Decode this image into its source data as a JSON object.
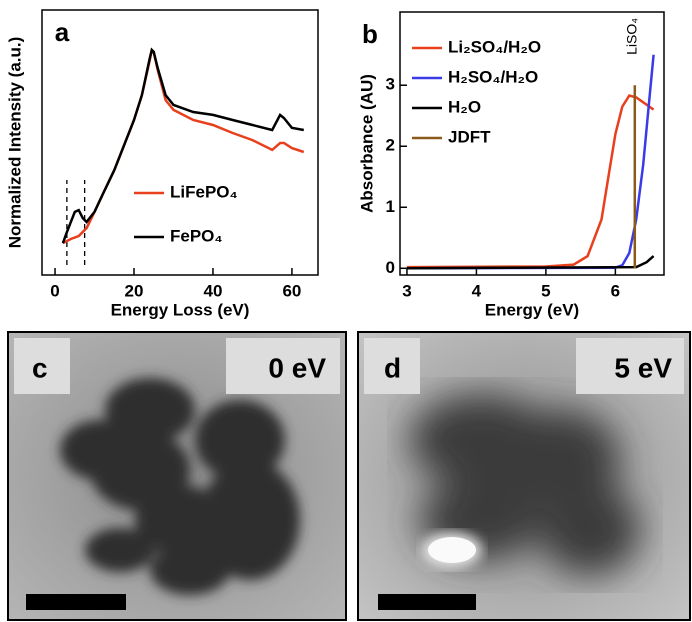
{
  "chart_data": [
    {
      "type": "line",
      "panel_label": "a",
      "x_label": "Energy Loss (eV)",
      "y_label": "Normalized Intensity (a.u.)",
      "xlim": [
        -3.3,
        66.6
      ],
      "ylim": [
        0,
        1
      ],
      "xticks": [
        0,
        20,
        40,
        60
      ],
      "vlines": [
        3,
        7.5
      ],
      "legend": "lower right",
      "series": [
        {
          "name": "LiFePO₄",
          "color": "#e8401c",
          "x": [
            2,
            4,
            6,
            8,
            10,
            12,
            15,
            18,
            20,
            22,
            24,
            24.5,
            25,
            26,
            28,
            30,
            35,
            40,
            45,
            50,
            55,
            57,
            58,
            60,
            63
          ],
          "values": [
            0.12,
            0.136,
            0.147,
            0.177,
            0.238,
            0.302,
            0.396,
            0.509,
            0.585,
            0.679,
            0.811,
            0.849,
            0.842,
            0.774,
            0.66,
            0.623,
            0.585,
            0.566,
            0.536,
            0.509,
            0.472,
            0.498,
            0.498,
            0.479,
            0.464
          ]
        },
        {
          "name": "FePO₄",
          "color": "#000000",
          "x": [
            2,
            3,
            5,
            6,
            7,
            8,
            10,
            12,
            15,
            18,
            20,
            22,
            24,
            24.5,
            25,
            26,
            28,
            30,
            35,
            40,
            45,
            50,
            55,
            57,
            58,
            60,
            63
          ],
          "values": [
            0.12,
            0.162,
            0.238,
            0.245,
            0.215,
            0.2,
            0.238,
            0.302,
            0.396,
            0.509,
            0.585,
            0.679,
            0.819,
            0.849,
            0.842,
            0.781,
            0.679,
            0.642,
            0.615,
            0.604,
            0.585,
            0.566,
            0.547,
            0.604,
            0.592,
            0.555,
            0.547
          ]
        }
      ]
    },
    {
      "type": "line",
      "panel_label": "b",
      "x_label": "Energy (eV)",
      "y_label": "Absorbance (AU)",
      "xlim": [
        2.9,
        6.7
      ],
      "ylim": [
        -0.11,
        4.2
      ],
      "xticks": [
        3,
        4,
        5,
        6
      ],
      "yticks": [
        0,
        1,
        2,
        3
      ],
      "annotation": "LiSO₄",
      "legend": "upper left",
      "series": [
        {
          "name": "Li₂SO₄/H₂O",
          "color": "#e8401c",
          "x": [
            3,
            5,
            5.4,
            5.6,
            5.8,
            5.9,
            6.0,
            6.1,
            6.2,
            6.3,
            6.4,
            6.55
          ],
          "values": [
            0.02,
            0.03,
            0.06,
            0.2,
            0.8,
            1.5,
            2.2,
            2.65,
            2.83,
            2.8,
            2.72,
            2.6
          ]
        },
        {
          "name": "H₂SO₄/H₂O",
          "color": "#3a3ae8",
          "x": [
            3,
            6.0,
            6.1,
            6.2,
            6.3,
            6.4,
            6.5,
            6.55
          ],
          "values": [
            0.0,
            0.01,
            0.05,
            0.25,
            0.8,
            1.7,
            2.9,
            3.5
          ]
        },
        {
          "name": "H₂O",
          "color": "#000000",
          "x": [
            3,
            6.3,
            6.45,
            6.55
          ],
          "values": [
            0.0,
            0.02,
            0.1,
            0.2
          ]
        },
        {
          "name": "JDFT",
          "color": "#8b5a1a",
          "x": [
            6.28,
            6.28
          ],
          "values": [
            0,
            3
          ]
        }
      ]
    }
  ],
  "images": [
    {
      "label": "c",
      "energy": "0 eV"
    },
    {
      "label": "d",
      "energy": "5 eV"
    }
  ]
}
